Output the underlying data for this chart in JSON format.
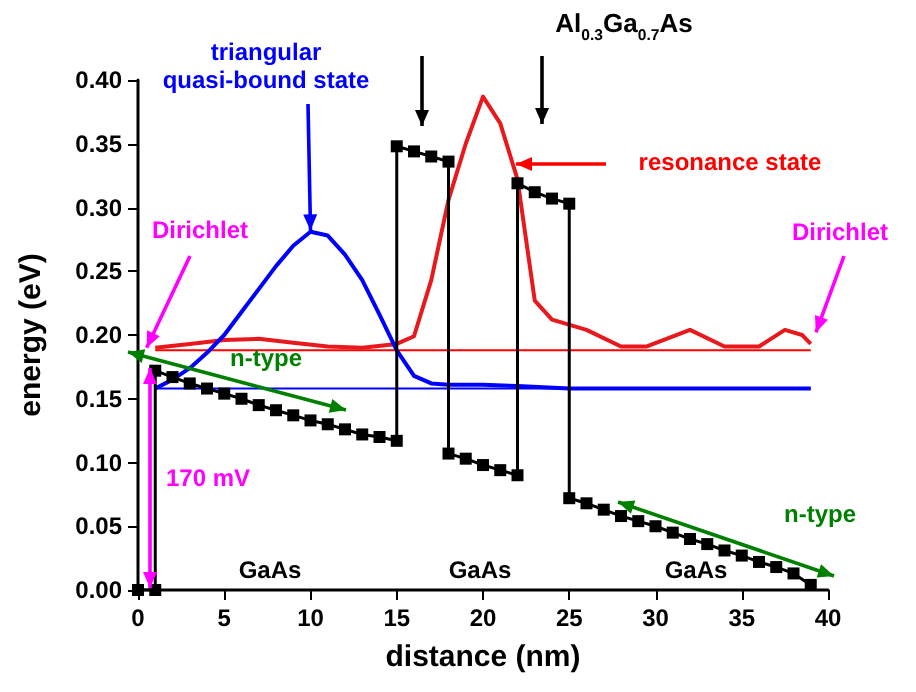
{
  "chart_data": {
    "type": "line",
    "xlabel": "distance (nm)",
    "ylabel": "energy (eV)",
    "xlim": [
      0,
      40
    ],
    "xticks": [
      0,
      5,
      10,
      15,
      20,
      25,
      30,
      35,
      40
    ],
    "ylim": [
      0,
      0.4
    ],
    "yticks": [
      {
        "value": 0,
        "label": "0.00"
      },
      {
        "value": 0.05,
        "label": "0.05"
      },
      {
        "value": 0.1,
        "label": "0.10"
      },
      {
        "value": 0.15,
        "label": "0.15"
      },
      {
        "value": 0.2,
        "label": "0.20"
      },
      {
        "value": 0.25,
        "label": "0.25"
      },
      {
        "value": 0.3,
        "label": "0.30"
      },
      {
        "value": 0.35,
        "label": "0.35"
      },
      {
        "value": 0.4,
        "label": "0.40"
      }
    ],
    "grid": false,
    "line_style": "solid",
    "series": [
      {
        "color": "#ff0000",
        "marker": "none",
        "x": [
          1,
          39
        ],
        "values": [
          0.188,
          0.188
        ]
      },
      {
        "color": "#0000ff",
        "marker": "none",
        "x": [
          1,
          39
        ],
        "values": [
          0.158,
          0.158
        ]
      },
      {
        "color": "#e8191d",
        "marker": "none",
        "x": [
          1,
          3,
          5,
          7,
          9,
          11,
          13,
          15,
          16,
          17,
          18,
          19,
          20,
          21,
          22,
          23,
          24,
          26,
          28,
          29.5,
          32,
          34,
          36,
          37.5,
          38.5,
          39
        ],
        "values": [
          0.19,
          0.193,
          0.196,
          0.197,
          0.194,
          0.191,
          0.19,
          0.193,
          0.199,
          0.243,
          0.306,
          0.35,
          0.387,
          0.366,
          0.322,
          0.227,
          0.212,
          0.204,
          0.191,
          0.191,
          0.204,
          0.191,
          0.191,
          0.204,
          0.2,
          0.193
        ]
      },
      {
        "color": "#0000ff",
        "marker": "none",
        "x": [
          1,
          2,
          3,
          4,
          5,
          6,
          7,
          8,
          9,
          10,
          11,
          12,
          13,
          14,
          15,
          16,
          17,
          18,
          20,
          22,
          25,
          39
        ],
        "values": [
          0.158,
          0.165,
          0.174,
          0.186,
          0.2,
          0.218,
          0.236,
          0.254,
          0.27,
          0.281,
          0.278,
          0.263,
          0.243,
          0.216,
          0.188,
          0.168,
          0.162,
          0.161,
          0.161,
          0.16,
          0.158,
          0.158
        ]
      },
      {
        "color": "#000000",
        "marker": "square",
        "x": [
          0,
          1,
          1,
          2,
          3,
          4,
          5,
          6,
          7,
          8,
          9,
          10,
          11,
          12,
          13,
          14,
          15,
          15,
          16,
          17,
          18,
          18,
          19,
          20,
          21,
          22,
          22,
          23,
          24,
          25,
          25,
          26,
          27,
          28,
          29,
          30,
          31,
          32,
          33,
          34,
          35,
          36,
          37,
          38,
          39
        ],
        "values": [
          0,
          0,
          0.172,
          0.167,
          0.162,
          0.158,
          0.154,
          0.15,
          0.145,
          0.141,
          0.137,
          0.133,
          0.13,
          0.126,
          0.122,
          0.12,
          0.117,
          0.348,
          0.344,
          0.34,
          0.336,
          0.107,
          0.103,
          0.098,
          0.094,
          0.09,
          0.319,
          0.312,
          0.307,
          0.303,
          0.072,
          0.068,
          0.063,
          0.058,
          0.054,
          0.05,
          0.045,
          0.04,
          0.036,
          0.031,
          0.027,
          0.022,
          0.018,
          0.013,
          0.004
        ]
      }
    ],
    "annotations": [
      {
        "text": "triangular\nquasi-bound state",
        "x": 10,
        "y": 0.282
      },
      "Al$_{0.3}$Ga$_{0.7}$As",
      "resonance state",
      {
        "text": "Dirichlet",
        "x": 0.5,
        "y": 0.19
      },
      {
        "text": "Dirichlet",
        "x": 39.3,
        "y": 0.202
      },
      "n-type",
      "n-type",
      "170 mV",
      "GaAs",
      "GaAs",
      "GaAs"
    ]
  }
}
